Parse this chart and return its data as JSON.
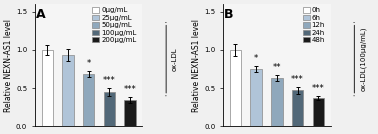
{
  "panel_A": {
    "label": "A",
    "categories": [
      "0μg/mL",
      "25μg/mL",
      "50μg/mL",
      "100μg/mL",
      "200μg/mL"
    ],
    "values": [
      1.0,
      0.93,
      0.69,
      0.45,
      0.34
    ],
    "errors": [
      0.06,
      0.08,
      0.04,
      0.05,
      0.04
    ],
    "colors": [
      "#ffffff",
      "#b0c4d8",
      "#8fa8bc",
      "#526878",
      "#1a1a1a"
    ],
    "edge_colors": [
      "#888888",
      "#888888",
      "#888888",
      "#888888",
      "#888888"
    ],
    "sig_labels": [
      "",
      "",
      "*",
      "***",
      "***"
    ],
    "ylabel": "Relative NEXN-AS1 level",
    "ylim": [
      0,
      1.6
    ],
    "yticks": [
      0.0,
      0.5,
      1.0,
      1.5
    ],
    "right_label": "ox-LDL",
    "brace_label": ""
  },
  "panel_B": {
    "label": "B",
    "categories": [
      "0h",
      "6h",
      "12h",
      "24h",
      "48h"
    ],
    "values": [
      1.0,
      0.75,
      0.63,
      0.47,
      0.37
    ],
    "errors": [
      0.08,
      0.04,
      0.04,
      0.04,
      0.03
    ],
    "colors": [
      "#ffffff",
      "#b0c4d8",
      "#8fa8bc",
      "#526878",
      "#1a1a1a"
    ],
    "edge_colors": [
      "#888888",
      "#888888",
      "#888888",
      "#888888",
      "#888888"
    ],
    "sig_labels": [
      "",
      "*",
      "**",
      "***",
      "***"
    ],
    "ylabel": "Relative NEXN-AS1 level",
    "ylim": [
      0,
      1.6
    ],
    "yticks": [
      0.0,
      0.5,
      1.0,
      1.5
    ],
    "right_label": "ox-LDL(100μg/mL)",
    "brace_label": ""
  },
  "bg_color": "#f5f5f5",
  "bar_width": 0.55,
  "fontsize_label": 5.5,
  "fontsize_tick": 5.0,
  "fontsize_sig": 6.0,
  "fontsize_panel": 9.0,
  "fontsize_legend": 5.0
}
